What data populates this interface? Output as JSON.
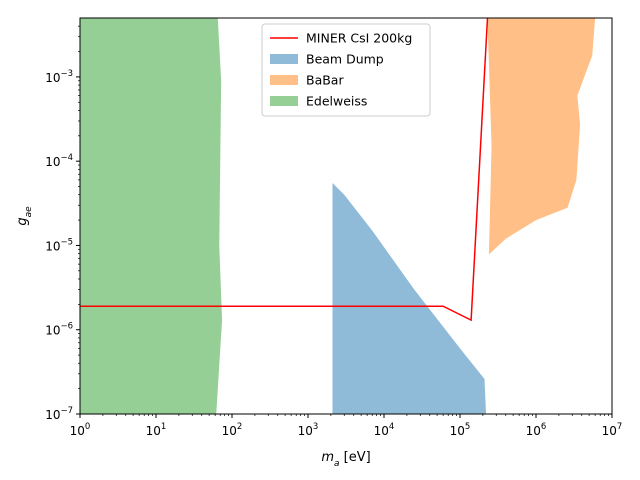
{
  "chart_data": {
    "type": "area",
    "title": "",
    "xlabel": "m_a [eV]",
    "ylabel": "g_ae",
    "x_scale": "log",
    "y_scale": "log",
    "xlim": [
      1,
      10000000
    ],
    "ylim": [
      1e-07,
      0.005
    ],
    "grid": false,
    "legend_position": "top-center",
    "x_ticks": [
      {
        "value": 1,
        "mantissa": "10",
        "exp": "0"
      },
      {
        "value": 10,
        "mantissa": "10",
        "exp": "1"
      },
      {
        "value": 100,
        "mantissa": "10",
        "exp": "2"
      },
      {
        "value": 1000,
        "mantissa": "10",
        "exp": "3"
      },
      {
        "value": 10000,
        "mantissa": "10",
        "exp": "4"
      },
      {
        "value": 100000,
        "mantissa": "10",
        "exp": "5"
      },
      {
        "value": 1000000,
        "mantissa": "10",
        "exp": "6"
      },
      {
        "value": 10000000,
        "mantissa": "10",
        "exp": "7"
      }
    ],
    "y_ticks": [
      {
        "value": 1e-07,
        "mantissa": "10",
        "exp": "−7"
      },
      {
        "value": 1e-06,
        "mantissa": "10",
        "exp": "−6"
      },
      {
        "value": 1e-05,
        "mantissa": "10",
        "exp": "−5"
      },
      {
        "value": 0.0001,
        "mantissa": "10",
        "exp": "−4"
      },
      {
        "value": 0.001,
        "mantissa": "10",
        "exp": "−3"
      }
    ],
    "series": [
      {
        "name": "Beam Dump",
        "kind": "fill",
        "color": "#1f77b4",
        "alpha": 0.5,
        "points": [
          [
            2100,
            1e-07
          ],
          [
            2100,
            5.5e-05
          ],
          [
            3000,
            4e-05
          ],
          [
            7000,
            1.5e-05
          ],
          [
            25000,
            3e-06
          ],
          [
            100000,
            6e-07
          ],
          [
            210000,
            2.6e-07
          ],
          [
            220000,
            1e-07
          ]
        ]
      },
      {
        "name": "BaBar",
        "kind": "fill",
        "color": "#ff7f0e",
        "alpha": 0.5,
        "points": [
          [
            230000,
            0.005
          ],
          [
            6000000,
            0.005
          ],
          [
            5500000,
            0.0018
          ],
          [
            3500000,
            0.0006
          ],
          [
            3800000,
            0.00027
          ],
          [
            3400000,
            6e-05
          ],
          [
            2600000,
            2.8e-05
          ],
          [
            1000000,
            2e-05
          ],
          [
            400000,
            1.2e-05
          ],
          [
            240000,
            7.8e-06
          ],
          [
            260000,
            0.00015
          ]
        ]
      },
      {
        "name": "Edelweiss",
        "kind": "fill",
        "color": "#2ca02c",
        "alpha": 0.5,
        "points": [
          [
            1,
            1e-07
          ],
          [
            1,
            0.005
          ],
          [
            65,
            0.005
          ],
          [
            72,
            0.0009
          ],
          [
            68,
            1e-05
          ],
          [
            74,
            1.3e-06
          ],
          [
            62,
            1e-07
          ]
        ]
      },
      {
        "name": "MINER CsI 200kg",
        "kind": "line",
        "color": "#ff0000",
        "points": [
          [
            1,
            1.9e-06
          ],
          [
            60000,
            1.9e-06
          ],
          [
            140000,
            1.3e-06
          ],
          [
            230000,
            0.005
          ]
        ]
      }
    ],
    "legend": [
      "MINER CsI 200kg",
      "Beam Dump",
      "BaBar",
      "Edelweiss"
    ]
  }
}
